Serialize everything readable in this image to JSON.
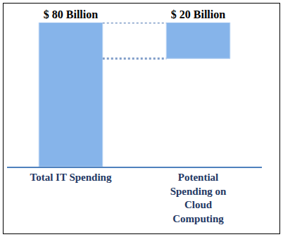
{
  "chart_data": {
    "type": "bar",
    "categories": [
      "Total IT Spending",
      "Potential Spending on Cloud Computing"
    ],
    "values": [
      80,
      20
    ],
    "value_labels": [
      "$ 80 Billion",
      "$ 20 Billion"
    ],
    "data_labels": true,
    "color": "#86b4ea",
    "ylim": [
      0,
      80
    ],
    "yticks": [],
    "tick_labels": "x",
    "grid": false
  }
}
